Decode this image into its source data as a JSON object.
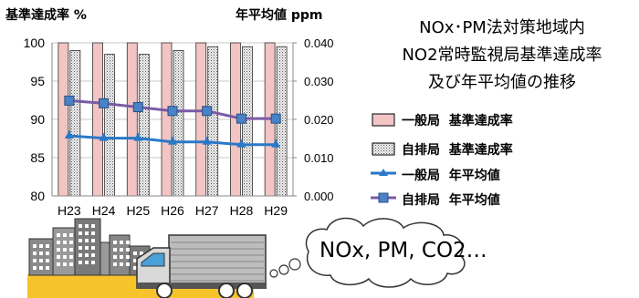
{
  "chart_data": {
    "type": "bar",
    "title_lines": [
      "NOx･PM法対策地域内",
      "NO2常時監視局基準達成率",
      "及び年平均値の推移"
    ],
    "ylabel_left": "基準達成率 %",
    "ylabel_right": "年平均値 ppm",
    "categories": [
      "H23",
      "H24",
      "H25",
      "H26",
      "H27",
      "H28",
      "H29"
    ],
    "ylim_left": [
      80,
      100
    ],
    "yticks_left": [
      "100",
      "95",
      "90",
      "85",
      "80"
    ],
    "ylim_right": [
      0,
      0.04
    ],
    "yticks_right": [
      "0.040",
      "0.030",
      "0.020",
      "0.010",
      "0.000"
    ],
    "bar_series": [
      {
        "name": "一般局 基準達成率",
        "values": [
          100,
          100,
          100,
          100,
          100,
          100,
          100
        ],
        "color": "#f2c4c4"
      },
      {
        "name": "自排局 基準達成率",
        "values": [
          99.0,
          98.5,
          98.5,
          99.0,
          99.5,
          99.5,
          99.5
        ],
        "color": "#dddddd"
      }
    ],
    "line_series": [
      {
        "name": "一般局 年平均値",
        "values": [
          0.0157,
          0.0151,
          0.0151,
          0.0141,
          0.0141,
          0.0134,
          0.0134
        ],
        "color": "#2a78c8",
        "marker": "triangle"
      },
      {
        "name": "自排局 年平均値",
        "values": [
          0.0249,
          0.0242,
          0.0232,
          0.0222,
          0.0222,
          0.0202,
          0.0202
        ],
        "color": "#7b5aa6",
        "marker": "square"
      }
    ],
    "legend_position": "right"
  },
  "legend": {
    "bar1": {
      "label": "一般局",
      "desc": "基準達成率"
    },
    "bar2": {
      "label": "自排局",
      "desc": "基準達成率"
    },
    "line1": {
      "label": "一般局",
      "desc": "年平均値"
    },
    "line2": {
      "label": "自排局",
      "desc": "年平均値"
    }
  },
  "illustration": {
    "bubble_text": "NOx, PM, CO2…",
    "building_color": "#8a8a8a",
    "road_color": "#f6c42a"
  }
}
